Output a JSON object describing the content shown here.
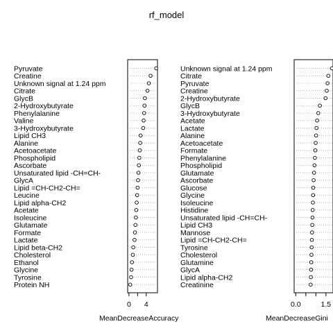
{
  "title": "rf_model",
  "chart_data": [
    {
      "type": "scatter",
      "subtype": "dotchart",
      "xlabel": "MeanDecreaseAccuracy",
      "xticks": [
        0,
        2,
        4
      ],
      "xtick_labels": [
        "0",
        "",
        "4"
      ],
      "xlim": [
        -0.3,
        6.6
      ],
      "categories": [
        "Pyruvate",
        "Creatine",
        "Unknown signal at 1.24 ppm",
        "Citrate",
        "GlycB",
        "2-Hydroxybutyrate",
        "Phenylalanine",
        "Valine",
        "3-Hydroxybutyrate",
        "Lipid CH3",
        "Alanine",
        "Acetoacetate",
        "Phospholipid",
        "Ascorbate",
        "Unsaturated lipid -CH=CH-",
        "GlycA",
        "Lipid =CH-CH2-CH=",
        "Leucine",
        "Lipid alpha-CH2",
        "Acetate",
        "Isoleucine",
        "Glutamate",
        "Formate",
        "Lactate",
        "Lipid beta-CH2",
        "Cholesterol",
        "Ethanol",
        "Glycine",
        "Tyrosine",
        "Protein NH"
      ],
      "values": [
        6.3,
        5.0,
        4.6,
        4.3,
        3.7,
        3.6,
        3.5,
        3.4,
        3.3,
        2.7,
        2.6,
        2.5,
        2.4,
        2.3,
        2.2,
        2.1,
        2.0,
        1.9,
        1.8,
        1.7,
        1.6,
        1.5,
        1.4,
        1.3,
        1.0,
        0.9,
        0.7,
        0.6,
        0.5,
        0.3
      ]
    },
    {
      "type": "scatter",
      "subtype": "dotchart",
      "xlabel": "MeanDecreaseGini",
      "xticks": [
        0.0,
        0.5,
        1.0,
        1.5
      ],
      "xtick_labels": [
        "0.0",
        "",
        "",
        "1.5"
      ],
      "xlim": [
        -0.08,
        1.85
      ],
      "categories": [
        "Unknown signal at 1.24 ppm",
        "Citrate",
        "Pyruvate",
        "Creatine",
        "2-Hydroxybutyrate",
        "GlycB",
        "3-Hydroxybutyrate",
        "Acetate",
        "Lactate",
        "Alanine",
        "Acetoacetate",
        "Formate",
        "Phenylalanine",
        "Phospholipid",
        "Glutamate",
        "Ascorbate",
        "Glucose",
        "Glycine",
        "Isoleucine",
        "Histidine",
        "Unsaturated lipid -CH=CH-",
        "Lipid CH3",
        "Mannose",
        "Lipid =CH-CH2-CH=",
        "Tyrosine",
        "Cholesterol",
        "Glutamine",
        "GlycA",
        "Lipid alpha-CH2",
        "Creatinine"
      ],
      "values": [
        1.8,
        1.62,
        1.58,
        1.54,
        1.48,
        1.2,
        1.12,
        1.06,
        1.03,
        1.01,
        0.99,
        0.97,
        0.95,
        0.93,
        0.91,
        0.89,
        0.87,
        0.86,
        0.85,
        0.84,
        0.83,
        0.82,
        0.81,
        0.8,
        0.79,
        0.78,
        0.77,
        0.76,
        0.75,
        0.74
      ]
    }
  ]
}
